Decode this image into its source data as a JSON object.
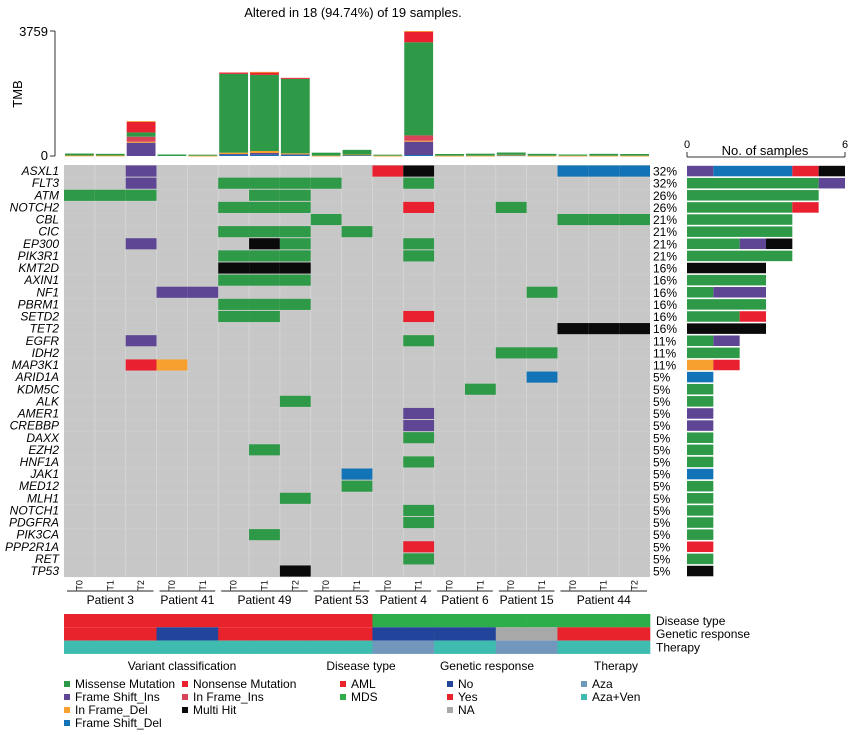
{
  "chart_data": {
    "type": "heatmap",
    "subtype": "oncoplot",
    "title": "Altered in 18 (94.74%) of 19 samples.",
    "tmb": {
      "ylabel": "TMB",
      "ylim": [
        0,
        3759
      ],
      "yticks": [
        "0",
        "3759"
      ],
      "stack_order": [
        "Frame Shift_Del",
        "Frame Shift_Ins",
        "In Frame_Del",
        "In Frame_Ins",
        "Missense Mutation",
        "Nonsense Mutation",
        "In Frame_Del_top"
      ],
      "values": [
        {
          "Missense Mutation": 60,
          "In Frame_Del": 15
        },
        {
          "Missense Mutation": 50,
          "In Frame_Del": 15
        },
        {
          "Frame Shift_Ins": 400,
          "In Frame_Del": 30,
          "In Frame_Ins": 150,
          "Missense Mutation": 130,
          "Nonsense Mutation": 320,
          "In Frame_Del_top": 20
        },
        {
          "Missense Mutation": 45
        },
        {
          "Missense Mutation": 30,
          "In Frame_Del": 10
        },
        {
          "Frame Shift_Del": 40,
          "Frame Shift_Ins": 20,
          "In Frame_Del": 40,
          "Missense Mutation": 2370,
          "Nonsense Mutation": 40
        },
        {
          "Frame Shift_Del": 40,
          "Frame Shift_Ins": 50,
          "In Frame_Del": 60,
          "Missense Mutation": 2290,
          "Nonsense Mutation": 70,
          "In Frame_Del_top": 20
        },
        {
          "Frame Shift_Del": 30,
          "Frame Shift_Ins": 20,
          "In Frame_Del": 30,
          "Missense Mutation": 2240,
          "Nonsense Mutation": 30
        },
        {
          "Missense Mutation": 90,
          "In Frame_Del": 10
        },
        {
          "Frame Shift_Del": 30,
          "Missense Mutation": 140,
          "In Frame_Del": 15
        },
        {
          "Missense Mutation": 30,
          "In Frame_Del": 10
        },
        {
          "Frame Shift_Del": 30,
          "Frame Shift_Ins": 400,
          "In Frame_Del": 30,
          "In Frame_Ins": 160,
          "Missense Mutation": 2800,
          "Nonsense Mutation": 320,
          "In Frame_Del_top": 20
        },
        {
          "Missense Mutation": 50,
          "In Frame_Del": 10
        },
        {
          "Missense Mutation": 60,
          "In Frame_Del": 10
        },
        {
          "Frame Shift_Del": 20,
          "Missense Mutation": 70,
          "In Frame_Del": 15
        },
        {
          "Missense Mutation": 55,
          "In Frame_Del": 10
        },
        {
          "Missense Mutation": 35,
          "In Frame_Del": 10
        },
        {
          "Missense Mutation": 55,
          "In Frame_Del": 10
        },
        {
          "Missense Mutation": 50,
          "In Frame_Del": 10
        }
      ]
    },
    "samples": [
      "T0",
      "T1",
      "T2",
      "T0",
      "T1",
      "T0",
      "T1",
      "T2",
      "T0",
      "T1",
      "T0",
      "T1",
      "T0",
      "T1",
      "T0",
      "T1",
      "T0",
      "T1",
      "T2"
    ],
    "patients": [
      {
        "name": "Patient 3",
        "start": 0,
        "count": 3
      },
      {
        "name": "Patient 41",
        "start": 3,
        "count": 2
      },
      {
        "name": "Patient 49",
        "start": 5,
        "count": 3
      },
      {
        "name": "Patient 53",
        "start": 8,
        "count": 2
      },
      {
        "name": "Patient 4",
        "start": 10,
        "count": 2
      },
      {
        "name": "Patient 6",
        "start": 12,
        "count": 2
      },
      {
        "name": "Patient 15",
        "start": 14,
        "count": 2
      },
      {
        "name": "Patient 44",
        "start": 16,
        "count": 3
      }
    ],
    "variant_codes": {
      "M": "Missense Mutation",
      "N": "Nonsense Mutation",
      "I": "Frame Shift_Ins",
      "F": "In Frame_Ins",
      "D": "In Frame_Del",
      "X": "Multi Hit",
      "S": "Frame Shift_Del"
    },
    "genes": [
      {
        "name": "ASXL1",
        "pct": "32%",
        "cells": {
          "2": "I",
          "10": "N",
          "11": "X",
          "16": "S",
          "17": "S",
          "18": "S"
        },
        "counts": {
          "Frame Shift_Ins": 1,
          "Frame Shift_Del": 3,
          "Nonsense Mutation": 1,
          "Multi Hit": 1
        }
      },
      {
        "name": "FLT3",
        "pct": "32%",
        "cells": {
          "2": "I",
          "5": "M",
          "6": "M",
          "7": "M",
          "8": "M",
          "11": "M"
        },
        "counts": {
          "Missense Mutation": 5,
          "Frame Shift_Ins": 1
        }
      },
      {
        "name": "ATM",
        "pct": "26%",
        "cells": {
          "0": "M",
          "1": "M",
          "2": "M",
          "6": "M",
          "7": "M"
        },
        "counts": {
          "Missense Mutation": 5
        }
      },
      {
        "name": "NOTCH2",
        "pct": "26%",
        "cells": {
          "5": "M",
          "6": "M",
          "7": "M",
          "11": "N",
          "14": "M"
        },
        "counts": {
          "Missense Mutation": 4,
          "Nonsense Mutation": 1
        }
      },
      {
        "name": "CBL",
        "pct": "21%",
        "cells": {
          "8": "M",
          "16": "M",
          "17": "M",
          "18": "M"
        },
        "counts": {
          "Missense Mutation": 4
        }
      },
      {
        "name": "CIC",
        "pct": "21%",
        "cells": {
          "5": "M",
          "6": "M",
          "7": "M",
          "9": "M"
        },
        "counts": {
          "Missense Mutation": 4
        }
      },
      {
        "name": "EP300",
        "pct": "21%",
        "cells": {
          "2": "I",
          "6": "X",
          "7": "M",
          "11": "M"
        },
        "counts": {
          "Missense Mutation": 2,
          "Frame Shift_Ins": 1,
          "Multi Hit": 1
        }
      },
      {
        "name": "PIK3R1",
        "pct": "21%",
        "cells": {
          "5": "M",
          "6": "M",
          "7": "M",
          "11": "M"
        },
        "counts": {
          "Missense Mutation": 4
        }
      },
      {
        "name": "KMT2D",
        "pct": "16%",
        "cells": {
          "5": "X",
          "6": "X",
          "7": "X"
        },
        "counts": {
          "Multi Hit": 3
        }
      },
      {
        "name": "AXIN1",
        "pct": "16%",
        "cells": {
          "5": "M",
          "6": "M",
          "7": "M"
        },
        "counts": {
          "Missense Mutation": 3
        }
      },
      {
        "name": "NF1",
        "pct": "16%",
        "cells": {
          "3": "I",
          "4": "I",
          "15": "M"
        },
        "counts": {
          "Missense Mutation": 1,
          "Frame Shift_Ins": 2
        }
      },
      {
        "name": "PBRM1",
        "pct": "16%",
        "cells": {
          "5": "M",
          "6": "M",
          "7": "M"
        },
        "counts": {
          "Missense Mutation": 3
        }
      },
      {
        "name": "SETD2",
        "pct": "16%",
        "cells": {
          "5": "M",
          "6": "M",
          "11": "N"
        },
        "counts": {
          "Missense Mutation": 2,
          "Nonsense Mutation": 1
        }
      },
      {
        "name": "TET2",
        "pct": "16%",
        "cells": {
          "16": "X",
          "17": "X",
          "18": "X"
        },
        "counts": {
          "Multi Hit": 3
        }
      },
      {
        "name": "EGFR",
        "pct": "11%",
        "cells": {
          "2": "I",
          "11": "M"
        },
        "counts": {
          "Missense Mutation": 1,
          "Frame Shift_Ins": 1
        }
      },
      {
        "name": "IDH2",
        "pct": "11%",
        "cells": {
          "14": "M",
          "15": "M"
        },
        "counts": {
          "Missense Mutation": 2
        }
      },
      {
        "name": "MAP3K1",
        "pct": "11%",
        "cells": {
          "2": "N",
          "3": "D"
        },
        "counts": {
          "In Frame_Del": 1,
          "Nonsense Mutation": 1
        }
      },
      {
        "name": "ARID1A",
        "pct": "5%",
        "cells": {
          "15": "S"
        },
        "counts": {
          "Frame Shift_Del": 1
        }
      },
      {
        "name": "KDM5C",
        "pct": "5%",
        "cells": {
          "13": "M"
        },
        "counts": {
          "Missense Mutation": 1
        }
      },
      {
        "name": "ALK",
        "pct": "5%",
        "cells": {
          "7": "M"
        },
        "counts": {
          "Missense Mutation": 1
        }
      },
      {
        "name": "AMER1",
        "pct": "5%",
        "cells": {
          "11": "I"
        },
        "counts": {
          "Frame Shift_Ins": 1
        }
      },
      {
        "name": "CREBBP",
        "pct": "5%",
        "cells": {
          "11": "I"
        },
        "counts": {
          "Frame Shift_Ins": 1
        }
      },
      {
        "name": "DAXX",
        "pct": "5%",
        "cells": {
          "11": "M"
        },
        "counts": {
          "Missense Mutation": 1
        }
      },
      {
        "name": "EZH2",
        "pct": "5%",
        "cells": {
          "6": "M"
        },
        "counts": {
          "Missense Mutation": 1
        }
      },
      {
        "name": "HNF1A",
        "pct": "5%",
        "cells": {
          "11": "M"
        },
        "counts": {
          "Missense Mutation": 1
        }
      },
      {
        "name": "JAK1",
        "pct": "5%",
        "cells": {
          "9": "S"
        },
        "counts": {
          "Frame Shift_Del": 1
        }
      },
      {
        "name": "MED12",
        "pct": "5%",
        "cells": {
          "9": "M"
        },
        "counts": {
          "Missense Mutation": 1
        }
      },
      {
        "name": "MLH1",
        "pct": "5%",
        "cells": {
          "7": "M"
        },
        "counts": {
          "Missense Mutation": 1
        }
      },
      {
        "name": "NOTCH1",
        "pct": "5%",
        "cells": {
          "11": "M"
        },
        "counts": {
          "Missense Mutation": 1
        }
      },
      {
        "name": "PDGFRA",
        "pct": "5%",
        "cells": {
          "11": "M"
        },
        "counts": {
          "Missense Mutation": 1
        }
      },
      {
        "name": "PIK3CA",
        "pct": "5%",
        "cells": {
          "6": "M"
        },
        "counts": {
          "Missense Mutation": 1
        }
      },
      {
        "name": "PPP2R1A",
        "pct": "5%",
        "cells": {
          "11": "N"
        },
        "counts": {
          "Nonsense Mutation": 1
        }
      },
      {
        "name": "RET",
        "pct": "5%",
        "cells": {
          "11": "M"
        },
        "counts": {
          "Missense Mutation": 1
        }
      },
      {
        "name": "TP53",
        "pct": "5%",
        "cells": {
          "7": "X"
        },
        "counts": {
          "Multi Hit": 1
        }
      }
    ],
    "side_bar": {
      "title": "No. of samples",
      "xlim": [
        0,
        6
      ],
      "xticks": [
        "0",
        "6"
      ],
      "stack_order": [
        "In Frame_Del",
        "Missense Mutation",
        "Frame Shift_Ins",
        "Frame Shift_Del",
        "Nonsense Mutation",
        "Multi Hit"
      ]
    },
    "annotations": [
      {
        "label": "Disease type",
        "values": [
          "AML",
          "AML",
          "AML",
          "AML",
          "AML",
          "AML",
          "AML",
          "AML",
          "AML",
          "AML",
          "MDS",
          "MDS",
          "MDS",
          "MDS",
          "MDS",
          "MDS",
          "MDS",
          "MDS",
          "MDS"
        ]
      },
      {
        "label": "Genetic response",
        "values": [
          "Yes",
          "Yes",
          "Yes",
          "No",
          "No",
          "Yes",
          "Yes",
          "Yes",
          "Yes",
          "Yes",
          "No",
          "No",
          "No",
          "No",
          "NA",
          "NA",
          "Yes",
          "Yes",
          "Yes"
        ]
      },
      {
        "label": "Therapy",
        "values": [
          "Aza+Ven",
          "Aza+Ven",
          "Aza+Ven",
          "Aza+Ven",
          "Aza+Ven",
          "Aza+Ven",
          "Aza+Ven",
          "Aza+Ven",
          "Aza+Ven",
          "Aza+Ven",
          "Aza",
          "Aza",
          "Aza+Ven",
          "Aza+Ven",
          "Aza",
          "Aza",
          "Aza+Ven",
          "Aza+Ven",
          "Aza+Ven"
        ]
      }
    ],
    "legends": [
      {
        "title": "Variant classification",
        "columns": [
          [
            "Missense Mutation",
            "Frame Shift_Ins",
            "In Frame_Del",
            "Frame Shift_Del"
          ],
          [
            "Nonsense Mutation",
            "In Frame_Ins",
            "Multi Hit"
          ]
        ]
      },
      {
        "title": "Disease type",
        "columns": [
          [
            "AML",
            "MDS"
          ]
        ]
      },
      {
        "title": "Genetic response",
        "columns": [
          [
            "No",
            "Yes",
            "NA"
          ]
        ]
      },
      {
        "title": "Therapy",
        "columns": [
          [
            "Aza",
            "Aza+Ven"
          ]
        ]
      }
    ]
  },
  "colors": {
    "Missense Mutation": "#2e9a48",
    "Nonsense Mutation": "#e8202f",
    "Frame Shift_Ins": "#5e4694",
    "In Frame_Ins": "#d9435a",
    "In Frame_Del": "#f7a030",
    "In Frame_Del_top": "#f7a030",
    "Multi Hit": "#0a0a0a",
    "Frame Shift_Del": "#1273b6",
    "background": "#c6c7c6",
    "AML": "#e8232c",
    "MDS": "#2eae4a",
    "No": "#22449b",
    "Yes": "#e8232c",
    "NA": "#a8a8a8",
    "Aza": "#7297bd",
    "Aza+Ven": "#3fbcb0"
  }
}
